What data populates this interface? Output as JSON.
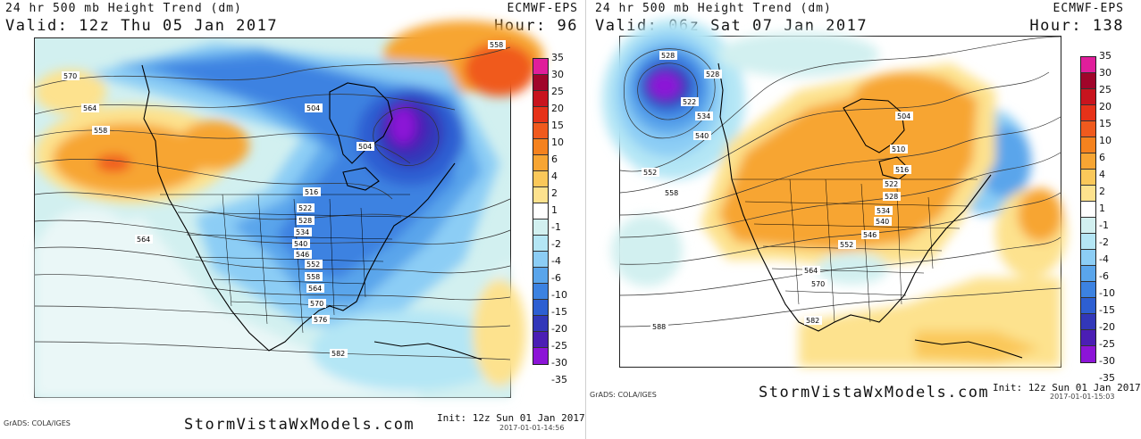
{
  "left": {
    "title": "24 hr 500 mb Height Trend (dm)",
    "model": "ECMWF-EPS",
    "valid": "Valid: 12z Thu 05 Jan 2017",
    "hour": "Hour: 96",
    "site": "StormVistaWxModels.com",
    "grads": "GrADS: COLA/IGES",
    "init": "Init: 12z Sun 01 Jan 2017",
    "timestamp": "2017-01-01-14:56",
    "contour_labels": [
      "570",
      "564",
      "558",
      "564",
      "504",
      "504",
      "516",
      "522",
      "528",
      "534",
      "540",
      "546",
      "552",
      "558",
      "564",
      "570",
      "576",
      "582",
      "558"
    ]
  },
  "right": {
    "title": "24 hr 500 mb Height Trend (dm)",
    "model": "ECMWF-EPS",
    "valid": "Valid: 06z Sat 07 Jan 2017",
    "hour": "Hour: 138",
    "site": "StormVistaWxModels.com",
    "grads": "GrADS: COLA/IGES",
    "init": "Init: 12z Sun 01 Jan 2017",
    "timestamp": "2017-01-01-15:03",
    "contour_labels": [
      "528",
      "528",
      "522",
      "534",
      "540",
      "552",
      "558",
      "504",
      "510",
      "516",
      "522",
      "528",
      "534",
      "540",
      "546",
      "552",
      "564",
      "570",
      "582",
      "588"
    ]
  },
  "colorbar": {
    "labels": [
      "35",
      "30",
      "25",
      "20",
      "15",
      "10",
      "6",
      "4",
      "2",
      "1",
      "-1",
      "-2",
      "-4",
      "-6",
      "-10",
      "-15",
      "-20",
      "-25",
      "-30",
      "-35"
    ],
    "colors": [
      "#e01e9b",
      "#a0052a",
      "#c8141e",
      "#e63219",
      "#f05a1e",
      "#f5821e",
      "#f7a533",
      "#fac85a",
      "#fde28e",
      "#ffffff",
      "#d2f0f0",
      "#b4e6f5",
      "#8ccdf5",
      "#5aa5eb",
      "#3c82e1",
      "#2d5fd2",
      "#3237b9",
      "#4b1eb4",
      "#8c14d7",
      "#ffffff"
    ]
  },
  "colors": {
    "strong_blue": "#3c82e1",
    "light_blue": "#b4e6f5",
    "orange": "#f7a533",
    "purple": "#8c14d7"
  }
}
